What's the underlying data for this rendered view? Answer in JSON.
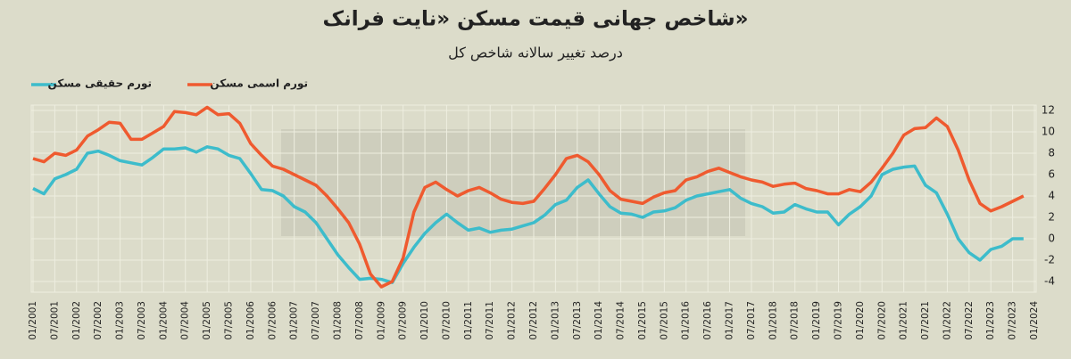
{
  "chart_data": {
    "type": "line",
    "title": "شاخص جهانی قیمت مسکن «نایت فرانک»",
    "subtitle": "درصد تغییر سالانه شاخص کل",
    "categories": [
      "01/2001",
      null,
      "07/2001",
      null,
      "01/2002",
      null,
      "07/2002",
      null,
      "01/2003",
      null,
      "07/2003",
      null,
      "01/2004",
      null,
      "07/2004",
      null,
      "01/2005",
      null,
      "07/2005",
      null,
      "01/2006",
      null,
      "07/2006",
      null,
      "01/2007",
      null,
      "07/2007",
      null,
      "01/2008",
      null,
      "07/2008",
      null,
      "01/2009",
      null,
      "07/2009",
      null,
      "01/2010",
      null,
      "07/2010",
      null,
      "01/2011",
      null,
      "07/2011",
      null,
      "01/2012",
      null,
      "07/2012",
      null,
      "01/2013",
      null,
      "07/2013",
      null,
      "01/2014",
      null,
      "07/2014",
      null,
      "01/2015",
      null,
      "07/2015",
      null,
      "01/2016",
      null,
      "07/2016",
      null,
      "01/2017",
      null,
      "07/2017",
      null,
      "01/2018",
      null,
      "07/2018",
      null,
      "01/2019",
      null,
      "07/2019",
      null,
      "01/2020",
      null,
      "07/2020",
      null,
      "01/2021",
      null,
      "07/2021",
      null,
      "01/2022",
      null,
      "07/2022",
      null,
      "01/2023",
      null,
      "07/2023",
      null,
      "01/2024"
    ],
    "series": [
      {
        "name": "تورم حقیقی مسکن",
        "color": "#3dbccb",
        "values": [
          4.7,
          4.2,
          5.6,
          6.0,
          6.5,
          8.0,
          8.2,
          7.8,
          7.3,
          7.1,
          6.9,
          7.6,
          8.4,
          8.4,
          8.5,
          8.1,
          8.6,
          8.4,
          7.8,
          7.5,
          6.1,
          4.6,
          4.5,
          4.0,
          3.0,
          2.5,
          1.5,
          0.0,
          -1.5,
          -2.7,
          -3.8,
          -3.7,
          -3.8,
          -4.1,
          -2.3,
          -0.8,
          0.5,
          1.5,
          2.3,
          1.5,
          0.8,
          1.0,
          0.6,
          0.8,
          0.9,
          1.2,
          1.5,
          2.2,
          3.2,
          3.6,
          4.8,
          5.5,
          4.2,
          3.0,
          2.4,
          2.3,
          2.0,
          2.5,
          2.6,
          2.9,
          3.6,
          4.0,
          4.2,
          4.4,
          4.6,
          3.8,
          3.3,
          3.0,
          2.4,
          2.5,
          3.2,
          2.8,
          2.5,
          2.5,
          1.3,
          2.3,
          3.0,
          4.0,
          6.0,
          6.5,
          6.7,
          6.8,
          5.0,
          4.3,
          2.3,
          0.0,
          -1.3,
          -2.0,
          -1.0,
          -0.7,
          0.0,
          0.0,
          null
        ]
      },
      {
        "name": "تورم اسمی مسکن",
        "color": "#ef5a2f",
        "values": [
          7.5,
          7.2,
          8.0,
          7.8,
          8.3,
          9.6,
          10.2,
          10.9,
          10.8,
          9.3,
          9.3,
          9.9,
          10.5,
          11.9,
          11.8,
          11.6,
          12.3,
          11.6,
          11.7,
          10.8,
          8.9,
          7.8,
          6.8,
          6.5,
          6.0,
          5.5,
          5.0,
          4.0,
          2.8,
          1.5,
          -0.5,
          -3.3,
          -4.5,
          -4.0,
          -1.8,
          2.5,
          4.8,
          5.3,
          4.6,
          4.0,
          4.5,
          4.8,
          4.3,
          3.7,
          3.4,
          3.3,
          3.5,
          4.7,
          6.0,
          7.5,
          7.8,
          7.2,
          6.0,
          4.5,
          3.7,
          3.5,
          3.3,
          3.9,
          4.3,
          4.5,
          5.5,
          5.8,
          6.3,
          6.6,
          6.2,
          5.8,
          5.5,
          5.3,
          4.9,
          5.1,
          5.2,
          4.7,
          4.5,
          4.2,
          4.2,
          4.6,
          4.4,
          5.3,
          6.6,
          8.0,
          9.7,
          10.3,
          10.4,
          11.3,
          10.5,
          8.3,
          5.5,
          3.3,
          2.6,
          3.0,
          3.5,
          4.0,
          null
        ]
      }
    ],
    "ylim": [
      -5,
      12.5
    ],
    "yticks": [
      -4,
      -2,
      0,
      2,
      4,
      6,
      8,
      10,
      12
    ],
    "grid": true
  }
}
